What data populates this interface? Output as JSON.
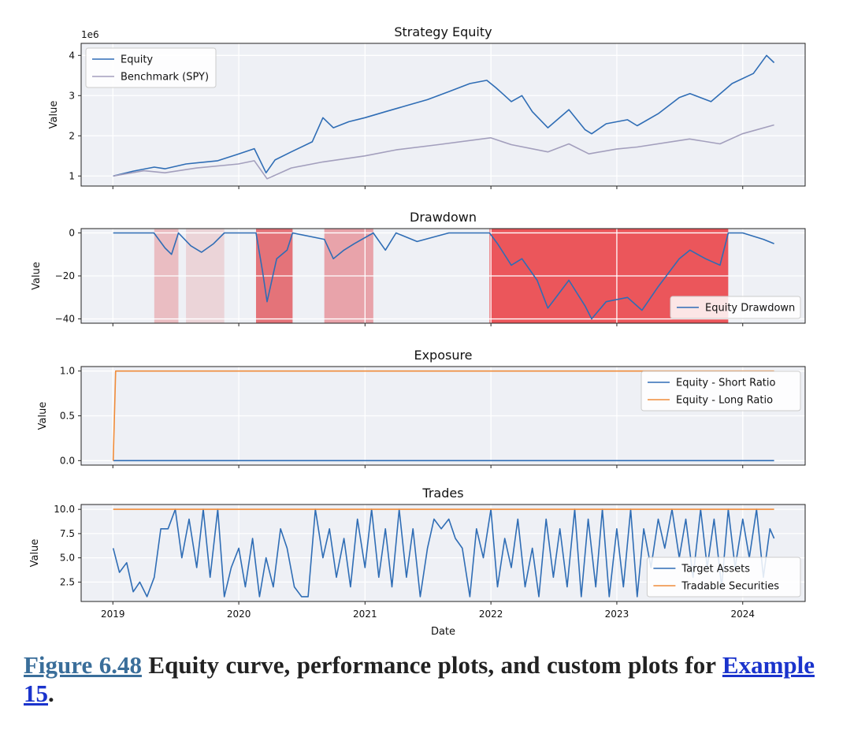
{
  "chart_data": [
    {
      "type": "line",
      "title": "Strategy Equity",
      "ylabel": "Value",
      "xlim": [
        "2018-10-01",
        "2024-06-30"
      ],
      "ylim": [
        0.75,
        4.3
      ],
      "y_scale_label": "1e6",
      "yticks": [
        1,
        2,
        3,
        4
      ],
      "grid": true,
      "legend_position": "upper left",
      "series": [
        {
          "name": "Equity",
          "color": "#2f6db5",
          "points": [
            [
              "2019-01-02",
              1.0
            ],
            [
              "2019-03-01",
              1.12
            ],
            [
              "2019-05-01",
              1.22
            ],
            [
              "2019-06-01",
              1.18
            ],
            [
              "2019-08-01",
              1.3
            ],
            [
              "2019-11-01",
              1.38
            ],
            [
              "2020-01-01",
              1.55
            ],
            [
              "2020-02-15",
              1.68
            ],
            [
              "2020-03-20",
              1.08
            ],
            [
              "2020-04-15",
              1.4
            ],
            [
              "2020-06-01",
              1.6
            ],
            [
              "2020-08-01",
              1.85
            ],
            [
              "2020-09-01",
              2.45
            ],
            [
              "2020-10-01",
              2.2
            ],
            [
              "2020-11-15",
              2.35
            ],
            [
              "2021-01-01",
              2.45
            ],
            [
              "2021-03-01",
              2.6
            ],
            [
              "2021-05-01",
              2.75
            ],
            [
              "2021-07-01",
              2.9
            ],
            [
              "2021-09-01",
              3.1
            ],
            [
              "2021-11-01",
              3.3
            ],
            [
              "2021-12-20",
              3.38
            ],
            [
              "2022-01-15",
              3.2
            ],
            [
              "2022-02-10",
              3.0
            ],
            [
              "2022-03-01",
              2.85
            ],
            [
              "2022-04-01",
              3.0
            ],
            [
              "2022-05-01",
              2.6
            ],
            [
              "2022-06-15",
              2.2
            ],
            [
              "2022-08-15",
              2.65
            ],
            [
              "2022-10-01",
              2.15
            ],
            [
              "2022-10-20",
              2.05
            ],
            [
              "2022-12-01",
              2.3
            ],
            [
              "2023-02-01",
              2.4
            ],
            [
              "2023-03-01",
              2.25
            ],
            [
              "2023-05-01",
              2.55
            ],
            [
              "2023-07-01",
              2.95
            ],
            [
              "2023-08-01",
              3.05
            ],
            [
              "2023-10-01",
              2.85
            ],
            [
              "2023-12-01",
              3.3
            ],
            [
              "2024-02-01",
              3.55
            ],
            [
              "2024-03-10",
              4.0
            ],
            [
              "2024-04-01",
              3.82
            ]
          ]
        },
        {
          "name": "Benchmark (SPY)",
          "color": "#a39fbd",
          "points": [
            [
              "2019-01-02",
              1.0
            ],
            [
              "2019-04-01",
              1.13
            ],
            [
              "2019-06-01",
              1.08
            ],
            [
              "2019-09-01",
              1.2
            ],
            [
              "2019-12-31",
              1.3
            ],
            [
              "2020-02-15",
              1.38
            ],
            [
              "2020-03-23",
              0.93
            ],
            [
              "2020-06-01",
              1.2
            ],
            [
              "2020-09-01",
              1.35
            ],
            [
              "2020-12-31",
              1.5
            ],
            [
              "2021-04-01",
              1.65
            ],
            [
              "2021-08-01",
              1.78
            ],
            [
              "2021-12-31",
              1.95
            ],
            [
              "2022-03-01",
              1.78
            ],
            [
              "2022-06-15",
              1.6
            ],
            [
              "2022-08-15",
              1.8
            ],
            [
              "2022-10-12",
              1.55
            ],
            [
              "2022-12-31",
              1.67
            ],
            [
              "2023-03-01",
              1.72
            ],
            [
              "2023-07-31",
              1.92
            ],
            [
              "2023-10-27",
              1.8
            ],
            [
              "2023-12-31",
              2.05
            ],
            [
              "2024-04-01",
              2.27
            ]
          ]
        }
      ]
    },
    {
      "type": "line",
      "title": "Drawdown",
      "ylabel": "Value",
      "ylim": [
        -42,
        2
      ],
      "yticks": [
        0,
        -20,
        -40
      ],
      "grid": true,
      "legend_position": "lower right",
      "shaded_periods": [
        {
          "start": "2019-05-01",
          "end": "2019-07-10",
          "color": "#e57e85",
          "opacity": 0.45
        },
        {
          "start": "2019-08-01",
          "end": "2019-11-20",
          "color": "#e57e85",
          "opacity": 0.25
        },
        {
          "start": "2020-02-20",
          "end": "2020-06-05",
          "color": "#e04a4f",
          "opacity": 0.75
        },
        {
          "start": "2020-09-05",
          "end": "2021-01-25",
          "color": "#e57078",
          "opacity": 0.6
        },
        {
          "start": "2021-12-28",
          "end": "2023-11-20",
          "color": "#ea3b3f",
          "opacity": 0.85
        }
      ],
      "series": [
        {
          "name": "Equity Drawdown",
          "color": "#2f6db5",
          "points": [
            [
              "2019-01-02",
              0
            ],
            [
              "2019-04-30",
              0
            ],
            [
              "2019-06-01",
              -7
            ],
            [
              "2019-06-20",
              -10
            ],
            [
              "2019-07-10",
              0
            ],
            [
              "2019-08-15",
              -6
            ],
            [
              "2019-09-15",
              -9
            ],
            [
              "2019-10-20",
              -5
            ],
            [
              "2019-11-20",
              0
            ],
            [
              "2020-02-20",
              0
            ],
            [
              "2020-03-10",
              -18
            ],
            [
              "2020-03-23",
              -32
            ],
            [
              "2020-04-20",
              -12
            ],
            [
              "2020-05-20",
              -8
            ],
            [
              "2020-06-05",
              0
            ],
            [
              "2020-09-05",
              -3
            ],
            [
              "2020-10-01",
              -12
            ],
            [
              "2020-11-01",
              -8
            ],
            [
              "2020-12-01",
              -5
            ],
            [
              "2021-01-25",
              0
            ],
            [
              "2021-03-01",
              -8
            ],
            [
              "2021-04-01",
              0
            ],
            [
              "2021-06-01",
              -4
            ],
            [
              "2021-09-01",
              0
            ],
            [
              "2021-12-28",
              0
            ],
            [
              "2022-01-20",
              -5
            ],
            [
              "2022-03-01",
              -15
            ],
            [
              "2022-04-01",
              -12
            ],
            [
              "2022-05-15",
              -22
            ],
            [
              "2022-06-15",
              -35
            ],
            [
              "2022-08-15",
              -22
            ],
            [
              "2022-10-01",
              -34
            ],
            [
              "2022-10-20",
              -40
            ],
            [
              "2022-12-01",
              -32
            ],
            [
              "2023-02-01",
              -30
            ],
            [
              "2023-03-15",
              -36
            ],
            [
              "2023-05-01",
              -25
            ],
            [
              "2023-07-01",
              -12
            ],
            [
              "2023-08-01",
              -8
            ],
            [
              "2023-09-15",
              -12
            ],
            [
              "2023-10-27",
              -15
            ],
            [
              "2023-11-20",
              0
            ],
            [
              "2024-01-01",
              0
            ],
            [
              "2024-03-01",
              -3
            ],
            [
              "2024-04-01",
              -5
            ]
          ]
        }
      ]
    },
    {
      "type": "line",
      "title": "Exposure",
      "ylabel": "Value",
      "ylim": [
        -0.05,
        1.05
      ],
      "yticks": [
        0.0,
        0.5,
        1.0
      ],
      "grid": true,
      "legend_position": "upper right",
      "series": [
        {
          "name": "Equity - Short Ratio",
          "color": "#2f6db5",
          "points": [
            [
              "2019-01-02",
              0
            ],
            [
              "2024-04-01",
              0
            ]
          ]
        },
        {
          "name": "Equity - Long Ratio",
          "color": "#f08c3a",
          "points": [
            [
              "2019-01-02",
              0
            ],
            [
              "2019-01-09",
              1
            ],
            [
              "2024-04-01",
              1
            ]
          ]
        }
      ]
    },
    {
      "type": "line",
      "title": "Trades",
      "ylabel": "Value",
      "xlabel": "Date",
      "ylim": [
        0.5,
        10.5
      ],
      "yticks": [
        2.5,
        5.0,
        7.5,
        10.0
      ],
      "x_ticks": [
        "2019",
        "2020",
        "2021",
        "2022",
        "2023",
        "2024"
      ],
      "grid": true,
      "legend_position": "lower right",
      "series": [
        {
          "name": "Target Assets",
          "color": "#2f6db5",
          "points": [
            [
              "2019-01-02",
              6
            ],
            [
              "2019-01-20",
              3.5
            ],
            [
              "2019-02-10",
              4.5
            ],
            [
              "2019-03-01",
              1.5
            ],
            [
              "2019-03-20",
              2.5
            ],
            [
              "2019-04-10",
              1
            ],
            [
              "2019-05-01",
              3
            ],
            [
              "2019-05-20",
              8
            ],
            [
              "2019-06-10",
              8
            ],
            [
              "2019-07-01",
              10
            ],
            [
              "2019-07-20",
              5
            ],
            [
              "2019-08-10",
              9
            ],
            [
              "2019-09-01",
              4
            ],
            [
              "2019-09-20",
              10
            ],
            [
              "2019-10-10",
              3
            ],
            [
              "2019-11-01",
              10
            ],
            [
              "2019-11-20",
              1
            ],
            [
              "2019-12-10",
              4
            ],
            [
              "2020-01-01",
              6
            ],
            [
              "2020-01-20",
              2
            ],
            [
              "2020-02-10",
              7
            ],
            [
              "2020-03-01",
              1
            ],
            [
              "2020-03-20",
              5
            ],
            [
              "2020-04-10",
              2
            ],
            [
              "2020-05-01",
              8
            ],
            [
              "2020-05-20",
              6
            ],
            [
              "2020-06-10",
              2
            ],
            [
              "2020-07-01",
              1
            ],
            [
              "2020-07-20",
              1
            ],
            [
              "2020-08-10",
              10
            ],
            [
              "2020-09-01",
              5
            ],
            [
              "2020-09-20",
              8
            ],
            [
              "2020-10-10",
              3
            ],
            [
              "2020-11-01",
              7
            ],
            [
              "2020-11-20",
              2
            ],
            [
              "2020-12-10",
              9
            ],
            [
              "2021-01-01",
              4
            ],
            [
              "2021-01-20",
              10
            ],
            [
              "2021-02-10",
              3
            ],
            [
              "2021-03-01",
              8
            ],
            [
              "2021-03-20",
              2
            ],
            [
              "2021-04-10",
              10
            ],
            [
              "2021-05-01",
              3
            ],
            [
              "2021-05-20",
              8
            ],
            [
              "2021-06-10",
              1
            ],
            [
              "2021-07-01",
              6
            ],
            [
              "2021-07-20",
              9
            ],
            [
              "2021-08-10",
              8
            ],
            [
              "2021-09-01",
              9
            ],
            [
              "2021-09-20",
              7
            ],
            [
              "2021-10-10",
              6
            ],
            [
              "2021-11-01",
              1
            ],
            [
              "2021-11-20",
              8
            ],
            [
              "2021-12-10",
              5
            ],
            [
              "2022-01-01",
              10
            ],
            [
              "2022-01-20",
              2
            ],
            [
              "2022-02-10",
              7
            ],
            [
              "2022-03-01",
              4
            ],
            [
              "2022-03-20",
              9
            ],
            [
              "2022-04-10",
              2
            ],
            [
              "2022-05-01",
              6
            ],
            [
              "2022-05-20",
              1
            ],
            [
              "2022-06-10",
              9
            ],
            [
              "2022-07-01",
              3
            ],
            [
              "2022-07-20",
              8
            ],
            [
              "2022-08-10",
              2
            ],
            [
              "2022-09-01",
              10
            ],
            [
              "2022-09-20",
              1
            ],
            [
              "2022-10-10",
              9
            ],
            [
              "2022-11-01",
              2
            ],
            [
              "2022-11-20",
              10
            ],
            [
              "2022-12-10",
              1
            ],
            [
              "2023-01-01",
              8
            ],
            [
              "2023-01-20",
              2
            ],
            [
              "2023-02-10",
              10
            ],
            [
              "2023-03-01",
              1
            ],
            [
              "2023-03-20",
              8
            ],
            [
              "2023-04-10",
              4
            ],
            [
              "2023-05-01",
              9
            ],
            [
              "2023-05-20",
              6
            ],
            [
              "2023-06-10",
              10
            ],
            [
              "2023-07-01",
              5
            ],
            [
              "2023-07-20",
              9
            ],
            [
              "2023-08-10",
              3
            ],
            [
              "2023-09-01",
              10
            ],
            [
              "2023-09-20",
              4
            ],
            [
              "2023-10-10",
              9
            ],
            [
              "2023-11-01",
              2
            ],
            [
              "2023-11-20",
              10
            ],
            [
              "2023-12-10",
              4
            ],
            [
              "2024-01-01",
              9
            ],
            [
              "2024-01-20",
              5
            ],
            [
              "2024-02-10",
              10
            ],
            [
              "2024-03-01",
              3
            ],
            [
              "2024-03-20",
              8
            ],
            [
              "2024-04-01",
              7
            ]
          ]
        },
        {
          "name": "Tradable Securities",
          "color": "#f08c3a",
          "points": [
            [
              "2019-01-02",
              10
            ],
            [
              "2024-04-01",
              10
            ]
          ]
        }
      ]
    }
  ],
  "caption": {
    "figure_link": "Figure 6.48",
    "text": " Equity curve, performance plots, and custom plots for ",
    "example_link": "Example 15",
    "end": "."
  }
}
